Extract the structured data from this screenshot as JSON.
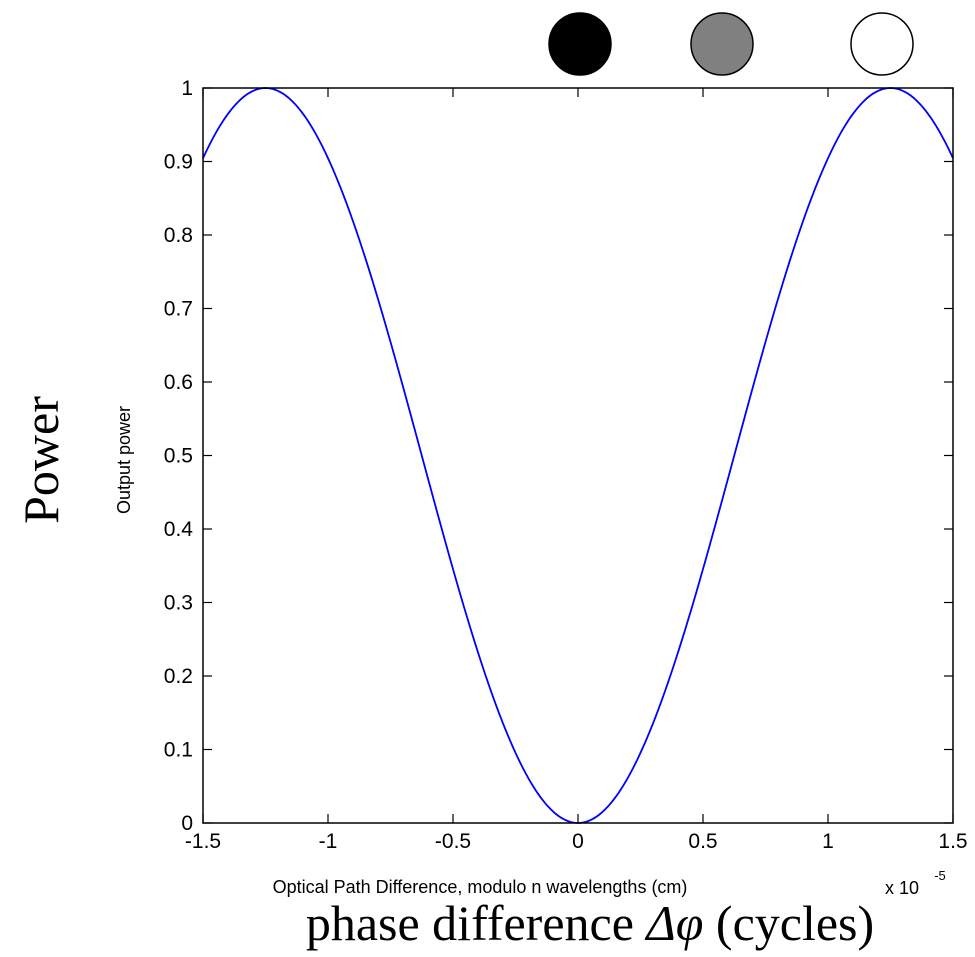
{
  "chart_data": {
    "type": "line",
    "xlabel": "Optical Path Difference, modulo n wavelengths (cm)",
    "ylabel": "Output power",
    "overlay_xlabel_prefix": "phase difference ",
    "overlay_xlabel_symbol": "Δφ",
    "overlay_xlabel_suffix": " (cycles)",
    "overlay_ylabel": "Power",
    "x_exponent_base": "x 10",
    "x_exponent_power": "-5",
    "xlim": [
      -1.5,
      1.5
    ],
    "ylim": [
      0,
      1
    ],
    "xticks": [
      -1.5,
      -1,
      -0.5,
      0,
      0.5,
      1,
      1.5
    ],
    "xtick_labels": [
      "-1.5",
      "-1",
      "-0.5",
      "0",
      "0.5",
      "1",
      "1.5"
    ],
    "yticks": [
      0,
      0.1,
      0.2,
      0.3,
      0.4,
      0.5,
      0.6,
      0.7,
      0.8,
      0.9,
      1
    ],
    "ytick_labels": [
      "0",
      "0.1",
      "0.2",
      "0.3",
      "0.4",
      "0.5",
      "0.6",
      "0.7",
      "0.8",
      "0.9",
      "1"
    ],
    "grid": false,
    "series": [
      {
        "color": "#0000ff",
        "x": [
          -1.5,
          -1.4,
          -1.3,
          -1.25,
          -1.2,
          -1.1,
          -1.0,
          -0.9,
          -0.8,
          -0.7,
          -0.6,
          -0.5,
          -0.4,
          -0.3,
          -0.2,
          -0.1,
          0,
          0.1,
          0.2,
          0.3,
          0.4,
          0.5,
          0.6,
          0.7,
          0.8,
          0.9,
          1.0,
          1.1,
          1.2,
          1.25,
          1.3,
          1.4,
          1.5
        ],
        "y": [
          0.905,
          0.966,
          0.996,
          1.0,
          0.996,
          0.966,
          0.905,
          0.818,
          0.708,
          0.585,
          0.452,
          0.345,
          0.235,
          0.137,
          0.064,
          0.016,
          0.0,
          0.016,
          0.064,
          0.137,
          0.235,
          0.345,
          0.452,
          0.585,
          0.708,
          0.818,
          0.905,
          0.966,
          0.996,
          1.0,
          0.996,
          0.966,
          0.905
        ]
      }
    ],
    "markers": [
      {
        "fill": "#000000"
      },
      {
        "fill": "#808080"
      },
      {
        "fill": "#ffffff"
      }
    ]
  }
}
